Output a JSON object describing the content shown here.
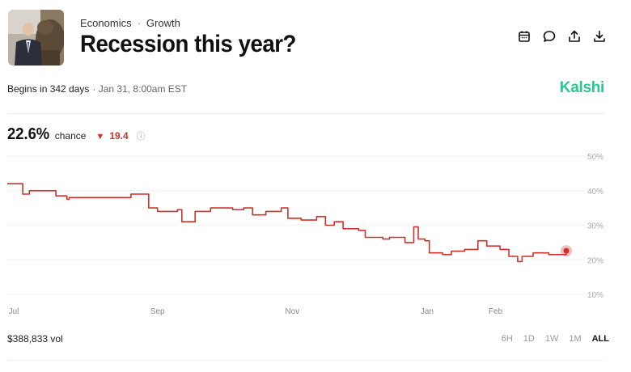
{
  "market": {
    "breadcrumb": [
      "Economics",
      "Growth"
    ],
    "title": "Recession this year?",
    "begins": "Begins in 342 days",
    "date": "· Jan 31, 8:00am EST",
    "brand": "Kalshi",
    "brand_color": "#28c98f"
  },
  "actions": [
    {
      "name": "calendar-icon"
    },
    {
      "name": "comment-icon"
    },
    {
      "name": "share-icon"
    },
    {
      "name": "download-icon"
    }
  ],
  "chance": {
    "value": "22.6%",
    "label": "chance",
    "delta_arrow": "▼",
    "delta": "19.4",
    "info": "ⓘ",
    "down_color": "#d0312d"
  },
  "chart_data": {
    "type": "line",
    "series": [
      {
        "color": "#d0312d",
        "points": [
          [
            "Jun 25",
            42
          ],
          [
            "Jul 1",
            42
          ],
          [
            "Jul 2",
            39
          ],
          [
            "Jul 5",
            40
          ],
          [
            "Jul 15",
            40
          ],
          [
            "Jul 17",
            38.5
          ],
          [
            "Jul 22",
            37.5
          ],
          [
            "Jul 23",
            38
          ],
          [
            "Aug 5",
            38
          ],
          [
            "Aug 15",
            38
          ],
          [
            "Aug 20",
            39
          ],
          [
            "Aug 27",
            39
          ],
          [
            "Aug 28",
            35
          ],
          [
            "Sep 1",
            34
          ],
          [
            "Sep 10",
            34.5
          ],
          [
            "Sep 12",
            31
          ],
          [
            "Sep 18",
            34
          ],
          [
            "Sep 25",
            35
          ],
          [
            "Oct 5",
            34.5
          ],
          [
            "Oct 10",
            35
          ],
          [
            "Oct 14",
            33
          ],
          [
            "Oct 20",
            34
          ],
          [
            "Oct 27",
            35
          ],
          [
            "Oct 30",
            32
          ],
          [
            "Nov 5",
            31.5
          ],
          [
            "Nov 12",
            32.5
          ],
          [
            "Nov 16",
            30
          ],
          [
            "Nov 20",
            31
          ],
          [
            "Nov 24",
            29
          ],
          [
            "Dec 1",
            28.5
          ],
          [
            "Dec 4",
            26.5
          ],
          [
            "Dec 12",
            26
          ],
          [
            "Dec 15",
            26.5
          ],
          [
            "Dec 22",
            25
          ],
          [
            "Dec 26",
            29.5
          ],
          [
            "Dec 28",
            26
          ],
          [
            "Dec 31",
            25.5
          ],
          [
            "Jan 2",
            22
          ],
          [
            "Jan 8",
            21.5
          ],
          [
            "Jan 12",
            22.5
          ],
          [
            "Jan 18",
            23
          ],
          [
            "Jan 24",
            25.5
          ],
          [
            "Jan 28",
            24
          ],
          [
            "Feb 3",
            23
          ],
          [
            "Feb 7",
            21
          ],
          [
            "Feb 11",
            19.5
          ],
          [
            "Feb 13",
            21
          ],
          [
            "Feb 18",
            22
          ],
          [
            "Feb 25",
            21.5
          ],
          [
            "Mar 5",
            22.6
          ]
        ]
      }
    ],
    "x_ticks": [
      "Jul",
      "Sep",
      "Nov",
      "Jan",
      "Feb"
    ],
    "y_ticks": [
      "50%",
      "40%",
      "30%",
      "20%",
      "10%"
    ],
    "ylim": [
      10,
      50
    ],
    "grid": true,
    "y_axis_position": "right"
  },
  "footer": {
    "volume": "$388,833 vol",
    "ranges": [
      "6H",
      "1D",
      "1W",
      "1M",
      "ALL"
    ],
    "active_range": "ALL"
  }
}
